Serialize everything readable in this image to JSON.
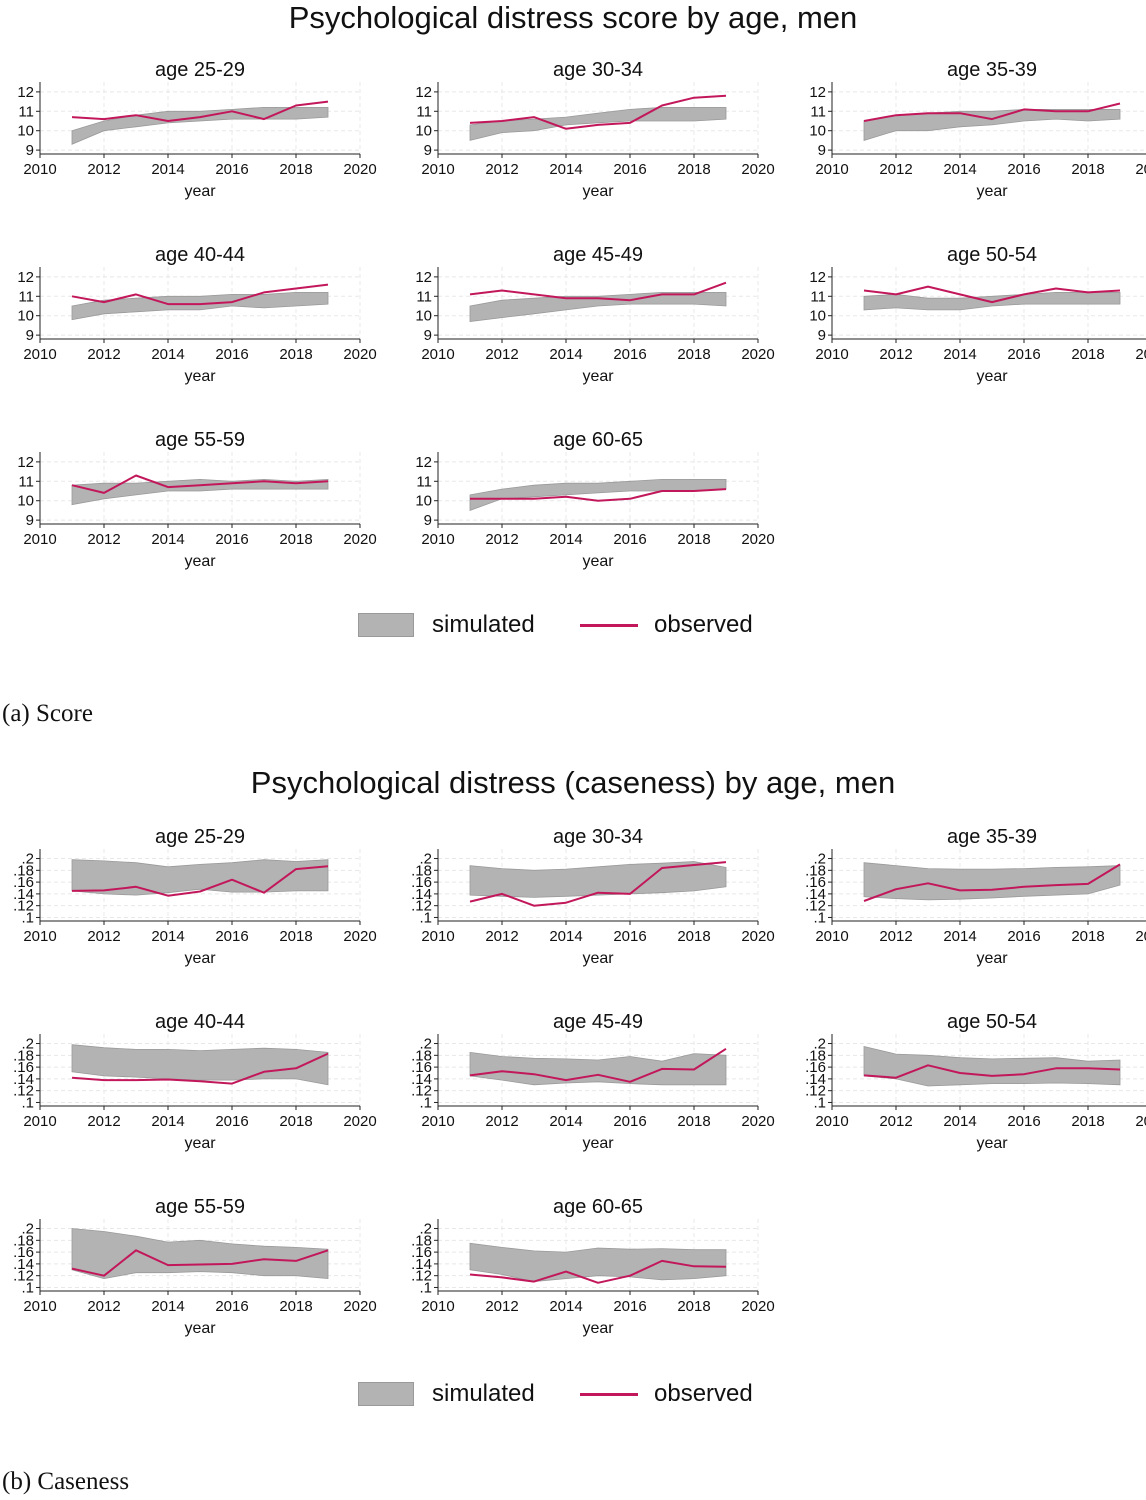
{
  "figure_a": {
    "title": "Psychological distress score by age, men",
    "caption": "(a)  Score"
  },
  "figure_b": {
    "title": "Psychological distress (caseness) by age, men",
    "caption": "(b)  Caseness"
  },
  "legend": {
    "simulated": "simulated",
    "observed": "observed"
  },
  "colors": {
    "band": "#b3b3b3",
    "band_edge": "#9a9a9a",
    "observed": "#c2185b",
    "grid": "#e8e8e8"
  },
  "chart_data": [
    {
      "type": "area",
      "title": "Psychological distress score by age, men",
      "xlabel": "year",
      "xticks": [
        "2010",
        "2012",
        "2014",
        "2016",
        "2018",
        "2020"
      ],
      "yticks": [
        "9",
        "10",
        "11",
        "12"
      ],
      "xlim": [
        2010,
        2020
      ],
      "ylim": [
        8.8,
        12.2
      ],
      "x": [
        2011,
        2012,
        2013,
        2014,
        2015,
        2016,
        2017,
        2018,
        2019
      ],
      "panels": [
        {
          "title": "age 25-29",
          "simulated_low": [
            9.3,
            10.0,
            10.2,
            10.4,
            10.5,
            10.6,
            10.6,
            10.6,
            10.7
          ],
          "simulated_high": [
            10.0,
            10.5,
            10.8,
            11.0,
            11.0,
            11.1,
            11.2,
            11.2,
            11.2
          ],
          "observed": [
            10.7,
            10.6,
            10.8,
            10.5,
            10.7,
            11.0,
            10.6,
            11.3,
            11.5
          ]
        },
        {
          "title": "age 30-34",
          "simulated_low": [
            9.5,
            9.9,
            10.0,
            10.3,
            10.4,
            10.5,
            10.5,
            10.5,
            10.6
          ],
          "simulated_high": [
            10.3,
            10.5,
            10.6,
            10.7,
            10.9,
            11.1,
            11.2,
            11.2,
            11.2
          ],
          "observed": [
            10.4,
            10.5,
            10.7,
            10.1,
            10.3,
            10.4,
            11.3,
            11.7,
            11.8
          ]
        },
        {
          "title": "age 35-39",
          "simulated_low": [
            9.5,
            10.0,
            10.0,
            10.2,
            10.3,
            10.5,
            10.6,
            10.5,
            10.6
          ],
          "simulated_high": [
            10.5,
            10.8,
            10.9,
            11.0,
            11.0,
            11.1,
            11.1,
            11.1,
            11.1
          ],
          "observed": [
            10.5,
            10.8,
            10.9,
            10.9,
            10.6,
            11.1,
            11.0,
            11.0,
            11.4
          ]
        },
        {
          "title": "age 40-44",
          "simulated_low": [
            9.8,
            10.1,
            10.2,
            10.3,
            10.3,
            10.5,
            10.4,
            10.5,
            10.6
          ],
          "simulated_high": [
            10.5,
            10.8,
            10.9,
            11.0,
            11.0,
            11.1,
            11.1,
            11.2,
            11.2
          ],
          "observed": [
            11.0,
            10.7,
            11.1,
            10.6,
            10.6,
            10.7,
            11.2,
            11.4,
            11.6
          ]
        },
        {
          "title": "age 45-49",
          "simulated_low": [
            9.7,
            9.9,
            10.1,
            10.3,
            10.5,
            10.6,
            10.6,
            10.6,
            10.5
          ],
          "simulated_high": [
            10.5,
            10.8,
            10.9,
            11.0,
            11.0,
            11.1,
            11.2,
            11.2,
            11.2
          ],
          "observed": [
            11.1,
            11.3,
            11.1,
            10.9,
            10.9,
            10.8,
            11.1,
            11.1,
            11.7
          ]
        },
        {
          "title": "age 50-54",
          "simulated_low": [
            10.3,
            10.4,
            10.3,
            10.3,
            10.5,
            10.6,
            10.6,
            10.6,
            10.6
          ],
          "simulated_high": [
            11.0,
            11.1,
            10.9,
            10.9,
            11.0,
            11.1,
            11.2,
            11.2,
            11.2
          ],
          "observed": [
            11.3,
            11.1,
            11.5,
            11.1,
            10.7,
            11.1,
            11.4,
            11.2,
            11.3
          ]
        },
        {
          "title": "age 55-59",
          "simulated_low": [
            9.8,
            10.1,
            10.3,
            10.5,
            10.5,
            10.6,
            10.6,
            10.6,
            10.6
          ],
          "simulated_high": [
            10.8,
            10.9,
            10.9,
            11.0,
            11.1,
            11.0,
            11.1,
            11.0,
            11.1
          ],
          "observed": [
            10.8,
            10.4,
            11.3,
            10.7,
            10.8,
            10.9,
            11.0,
            10.9,
            11.0
          ]
        },
        {
          "title": "age 60-65",
          "simulated_low": [
            9.5,
            10.1,
            10.2,
            10.3,
            10.4,
            10.5,
            10.5,
            10.5,
            10.6
          ],
          "simulated_high": [
            10.3,
            10.6,
            10.8,
            10.9,
            10.9,
            11.0,
            11.1,
            11.1,
            11.1
          ],
          "observed": [
            10.1,
            10.1,
            10.1,
            10.2,
            10.0,
            10.1,
            10.5,
            10.5,
            10.6
          ]
        }
      ]
    },
    {
      "type": "area",
      "title": "Psychological distress (caseness) by age, men",
      "xlabel": "year",
      "xticks": [
        "2010",
        "2012",
        "2014",
        "2016",
        "2018",
        "2020"
      ],
      "yticks": [
        ".1",
        ".12",
        ".14",
        ".16",
        ".18",
        ".2"
      ],
      "xlim": [
        2010,
        2020
      ],
      "ylim": [
        0.094,
        0.206
      ],
      "x": [
        2011,
        2012,
        2013,
        2014,
        2015,
        2016,
        2017,
        2018,
        2019
      ],
      "panels": [
        {
          "title": "age 25-29",
          "simulated_low": [
            0.145,
            0.14,
            0.138,
            0.142,
            0.148,
            0.143,
            0.143,
            0.145,
            0.145
          ],
          "simulated_high": [
            0.198,
            0.196,
            0.193,
            0.186,
            0.19,
            0.193,
            0.198,
            0.195,
            0.198
          ],
          "observed": [
            0.145,
            0.146,
            0.152,
            0.137,
            0.144,
            0.164,
            0.142,
            0.182,
            0.187
          ]
        },
        {
          "title": "age 30-34",
          "simulated_low": [
            0.138,
            0.136,
            0.134,
            0.136,
            0.138,
            0.14,
            0.142,
            0.145,
            0.152
          ],
          "simulated_high": [
            0.188,
            0.183,
            0.18,
            0.182,
            0.186,
            0.19,
            0.192,
            0.195,
            0.185
          ],
          "observed": [
            0.127,
            0.14,
            0.12,
            0.125,
            0.142,
            0.14,
            0.184,
            0.189,
            0.194
          ]
        },
        {
          "title": "age 35-39",
          "simulated_low": [
            0.135,
            0.132,
            0.13,
            0.131,
            0.133,
            0.136,
            0.138,
            0.14,
            0.155
          ],
          "simulated_high": [
            0.193,
            0.188,
            0.183,
            0.182,
            0.182,
            0.183,
            0.185,
            0.186,
            0.188
          ],
          "observed": [
            0.128,
            0.148,
            0.158,
            0.146,
            0.147,
            0.152,
            0.155,
            0.157,
            0.19
          ]
        },
        {
          "title": "age 40-44",
          "simulated_low": [
            0.152,
            0.145,
            0.143,
            0.14,
            0.138,
            0.138,
            0.14,
            0.14,
            0.13
          ],
          "simulated_high": [
            0.198,
            0.193,
            0.19,
            0.19,
            0.188,
            0.19,
            0.192,
            0.19,
            0.185
          ],
          "observed": [
            0.142,
            0.138,
            0.138,
            0.139,
            0.136,
            0.132,
            0.152,
            0.158,
            0.183
          ]
        },
        {
          "title": "age 45-49",
          "simulated_low": [
            0.145,
            0.138,
            0.13,
            0.133,
            0.135,
            0.132,
            0.13,
            0.13,
            0.13
          ],
          "simulated_high": [
            0.185,
            0.178,
            0.175,
            0.174,
            0.172,
            0.178,
            0.17,
            0.183,
            0.18
          ],
          "observed": [
            0.146,
            0.153,
            0.148,
            0.138,
            0.147,
            0.135,
            0.157,
            0.156,
            0.191
          ]
        },
        {
          "title": "age 50-54",
          "simulated_low": [
            0.145,
            0.14,
            0.128,
            0.13,
            0.132,
            0.132,
            0.133,
            0.132,
            0.13
          ],
          "simulated_high": [
            0.195,
            0.182,
            0.18,
            0.176,
            0.174,
            0.175,
            0.176,
            0.17,
            0.172
          ],
          "observed": [
            0.146,
            0.142,
            0.163,
            0.15,
            0.145,
            0.148,
            0.158,
            0.158,
            0.156
          ]
        },
        {
          "title": "age 55-59",
          "simulated_low": [
            0.13,
            0.115,
            0.125,
            0.125,
            0.127,
            0.125,
            0.12,
            0.12,
            0.115
          ],
          "simulated_high": [
            0.2,
            0.195,
            0.187,
            0.177,
            0.18,
            0.174,
            0.17,
            0.168,
            0.165
          ],
          "observed": [
            0.132,
            0.12,
            0.163,
            0.138,
            0.139,
            0.14,
            0.148,
            0.145,
            0.163
          ]
        },
        {
          "title": "age 60-65",
          "simulated_low": [
            0.13,
            0.122,
            0.11,
            0.115,
            0.12,
            0.118,
            0.113,
            0.115,
            0.12
          ],
          "simulated_high": [
            0.175,
            0.168,
            0.162,
            0.16,
            0.167,
            0.165,
            0.166,
            0.164,
            0.164
          ],
          "observed": [
            0.122,
            0.117,
            0.11,
            0.127,
            0.108,
            0.12,
            0.145,
            0.136,
            0.135
          ]
        }
      ]
    }
  ]
}
